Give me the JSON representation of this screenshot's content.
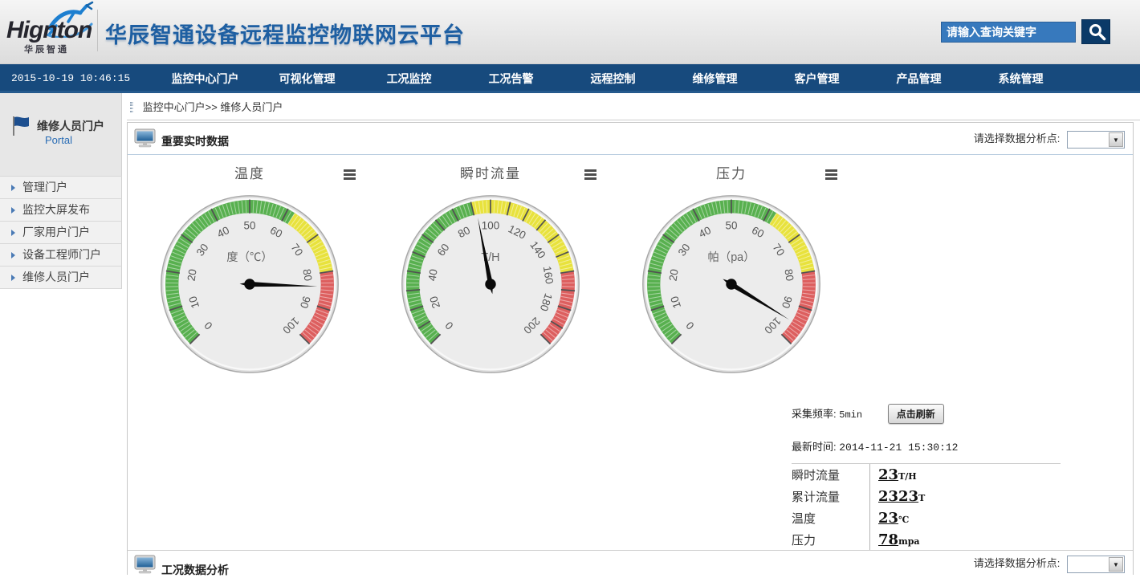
{
  "colors": {
    "nav_blue": "#174a7d",
    "search_input_blue": "#3779bd",
    "search_button_navy": "#0b3a68",
    "title_blue": "#1e5fa2",
    "accent_blue": "#2a6db5",
    "gauge_green": "#58b04f",
    "gauge_yellow": "#e8e23d",
    "gauge_red": "#dd5f5f",
    "needle_black": "#0a0a0a"
  },
  "header": {
    "logo_text": "Hignton",
    "logo_subtext": "华辰智通",
    "title": "华辰智通设备远程监控物联网云平台",
    "search_placeholder": "请输入查询关键字"
  },
  "nav": {
    "timestamp": "2015-10-19 10:46:15",
    "items": [
      "监控中心门户",
      "可视化管理",
      "工况监控",
      "工况告警",
      "远程控制",
      "维修管理",
      "客户管理",
      "产品管理",
      "系统管理"
    ]
  },
  "sidebar": {
    "portal_title": "维修人员门户",
    "portal_subtitle": "Portal",
    "items": [
      "管理门户",
      "监控大屏发布",
      "厂家用户门户",
      "设备工程师门户",
      "维修人员门户"
    ]
  },
  "breadcrumb": {
    "text": "监控中心门户>> 维修人员门户"
  },
  "sections": {
    "realtime_title": "重要实时数据",
    "analysis_title": "工况数据分析",
    "analysis_point_label": "请选择数据分析点:"
  },
  "info": {
    "freq_label": "采集频率:",
    "freq_value": "5min",
    "refresh_button": "点击刷新",
    "time_label": "最新时间:",
    "time_value": "2014-11-21 15:30:12",
    "readings": [
      {
        "label": "瞬时流量",
        "value": "23",
        "unit": "T/H"
      },
      {
        "label": "累计流量",
        "value": "2323",
        "unit": "T"
      },
      {
        "label": "温度",
        "value": "23",
        "unit": "℃"
      },
      {
        "label": "压力",
        "value": "78",
        "unit": "mpa"
      }
    ]
  },
  "chart_data": [
    {
      "type": "gauge",
      "title": "温度",
      "unit_label": "度（℃）",
      "min": 0,
      "max": 100,
      "label_step": 10,
      "major_tick_step": 10,
      "minor_ticks": 100,
      "start_angle": -135,
      "end_angle": 135,
      "value": 84,
      "bands": [
        {
          "from": 0,
          "to": 62,
          "color": "#58b04f"
        },
        {
          "from": 62,
          "to": 80,
          "color": "#e8e23d"
        },
        {
          "from": 80,
          "to": 100,
          "color": "#dd5f5f"
        }
      ]
    },
    {
      "type": "gauge",
      "title": "瞬时流量",
      "unit_label": "T/H",
      "min": 0,
      "max": 200,
      "label_step": 20,
      "major_tick_step": 10,
      "minor_ticks": 100,
      "start_angle": -135,
      "end_angle": 135,
      "value": 92,
      "bands": [
        {
          "from": 0,
          "to": 90,
          "color": "#58b04f"
        },
        {
          "from": 90,
          "to": 160,
          "color": "#e8e23d"
        },
        {
          "from": 160,
          "to": 200,
          "color": "#dd5f5f"
        }
      ]
    },
    {
      "type": "gauge",
      "title": "压力",
      "unit_label": "帕（pa）",
      "min": 0,
      "max": 100,
      "label_step": 10,
      "major_tick_step": 10,
      "minor_ticks": 100,
      "start_angle": -135,
      "end_angle": 135,
      "value": 95,
      "bands": [
        {
          "from": 0,
          "to": 62,
          "color": "#58b04f"
        },
        {
          "from": 62,
          "to": 80,
          "color": "#e8e23d"
        },
        {
          "from": 80,
          "to": 100,
          "color": "#dd5f5f"
        }
      ]
    }
  ]
}
